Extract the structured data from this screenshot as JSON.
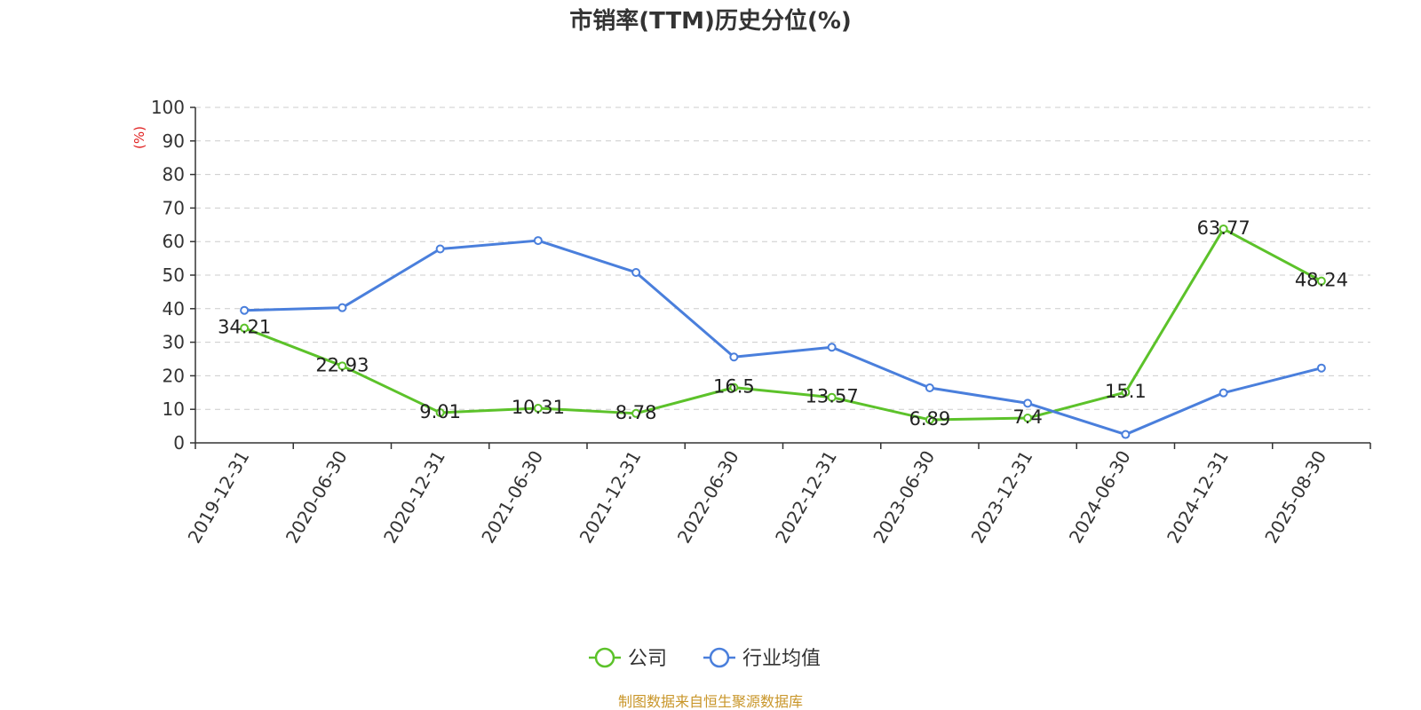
{
  "chart_data": {
    "type": "line",
    "title": "市销率(TTM)历史分位(%)",
    "ylabel": "(%)",
    "xlabel": "",
    "ylim": [
      0,
      100
    ],
    "yticks": [
      0,
      10,
      20,
      30,
      40,
      50,
      60,
      70,
      80,
      90,
      100
    ],
    "categories": [
      "2019-12-31",
      "2020-06-30",
      "2020-12-31",
      "2021-06-30",
      "2021-12-31",
      "2022-06-30",
      "2022-12-31",
      "2023-06-30",
      "2023-12-31",
      "2024-06-30",
      "2024-12-31",
      "2025-08-30"
    ],
    "grid": true,
    "legend_position": "bottom-center",
    "series": [
      {
        "name": "公司",
        "color": "#5cc22a",
        "values": [
          34.21,
          22.93,
          9.01,
          10.31,
          8.78,
          16.5,
          13.57,
          6.89,
          7.4,
          15.1,
          63.77,
          48.24
        ],
        "labels": [
          "34.21",
          "22.93",
          "9.01",
          "10.31",
          "8.78",
          "16.5",
          "13.57",
          "6.89",
          "7.4",
          "15.1",
          "63.77",
          "48.24"
        ]
      },
      {
        "name": "行业均值",
        "color": "#4a7fdc",
        "values": [
          39.5,
          40.3,
          57.8,
          60.3,
          50.8,
          25.6,
          28.5,
          16.4,
          11.8,
          2.5,
          14.9,
          22.3
        ]
      }
    ]
  },
  "source": "制图数据来自恒生聚源数据库",
  "colors": {
    "axis": "#333333",
    "grid": "#cccccc",
    "ylabel": "#e02020",
    "source": "#c9962a"
  }
}
